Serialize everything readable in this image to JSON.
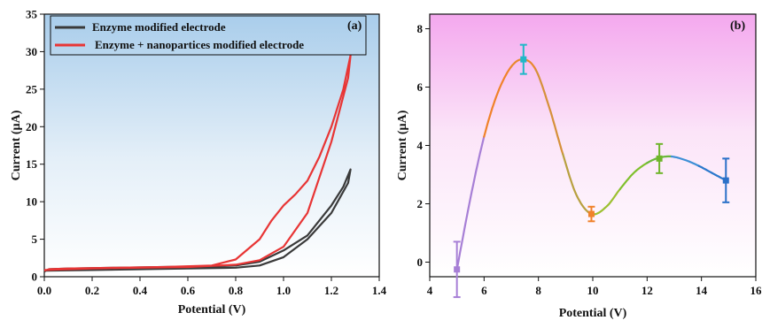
{
  "chart_data": [
    {
      "type": "line",
      "panel_label": "(a)",
      "xlabel": "Potential (V)",
      "ylabel": "Current (µA)",
      "xlim": [
        0.0,
        1.4
      ],
      "ylim": [
        0,
        35
      ],
      "xticks": [
        "0.0",
        "0.2",
        "0.4",
        "0.6",
        "0.8",
        "1.0",
        "1.2",
        "1.4"
      ],
      "yticks": [
        "0",
        "5",
        "10",
        "15",
        "20",
        "25",
        "30",
        "35"
      ],
      "legend_position": "top-left",
      "background": "gradient blue to white",
      "series": [
        {
          "name": "Enzyme modified electrode",
          "color": "#3a3a3a",
          "x": [
            0.0,
            0.02,
            0.1,
            0.3,
            0.5,
            0.7,
            0.8,
            0.9,
            1.0,
            1.1,
            1.2,
            1.25,
            1.28,
            1.27,
            1.2,
            1.1,
            1.0,
            0.9,
            0.8,
            0.6,
            0.4,
            0.2,
            0.0
          ],
          "y": [
            0.7,
            1.0,
            1.1,
            1.2,
            1.3,
            1.4,
            1.5,
            2.0,
            3.5,
            5.5,
            9.5,
            12.0,
            14.3,
            12.5,
            8.5,
            5.0,
            2.6,
            1.5,
            1.2,
            1.1,
            1.0,
            0.9,
            0.8
          ]
        },
        {
          "name": "Enzyme + nanopartices modified electrode",
          "color": "#e83535",
          "x": [
            0.0,
            0.02,
            0.1,
            0.3,
            0.5,
            0.7,
            0.8,
            0.9,
            0.95,
            1.0,
            1.05,
            1.1,
            1.15,
            1.2,
            1.25,
            1.28,
            1.27,
            1.2,
            1.1,
            1.0,
            0.9,
            0.8,
            0.6,
            0.4,
            0.2,
            0.0
          ],
          "y": [
            0.8,
            1.0,
            1.1,
            1.2,
            1.3,
            1.5,
            2.3,
            5.0,
            7.5,
            9.5,
            11.0,
            12.8,
            16.0,
            20.0,
            25.0,
            29.5,
            26.5,
            18.0,
            8.5,
            4.0,
            2.2,
            1.6,
            1.3,
            1.2,
            1.1,
            0.9
          ]
        }
      ]
    },
    {
      "type": "line",
      "panel_label": "(b)",
      "xlabel": "Potential (V)",
      "ylabel": "Current (µA)",
      "xlim": [
        4,
        16
      ],
      "ylim": [
        -0.5,
        8.5
      ],
      "xticks": [
        "4",
        "6",
        "8",
        "10",
        "12",
        "14",
        "16"
      ],
      "yticks": [
        "0",
        "2",
        "4",
        "6",
        "8"
      ],
      "background": "gradient pink to white",
      "points": [
        {
          "x": 5.0,
          "y": -0.25,
          "err": 0.95,
          "color": "#a77fd6"
        },
        {
          "x": 7.45,
          "y": 6.95,
          "err": 0.5,
          "color": "#20b8c8"
        },
        {
          "x": 9.95,
          "y": 1.65,
          "err": 0.25,
          "color": "#f0822a"
        },
        {
          "x": 12.45,
          "y": 3.55,
          "err": 0.5,
          "color": "#6fb52b"
        },
        {
          "x": 14.9,
          "y": 2.8,
          "err": 0.75,
          "color": "#2a70c8"
        }
      ],
      "curve": {
        "x": [
          5.0,
          5.5,
          6.0,
          6.5,
          7.0,
          7.45,
          7.9,
          8.4,
          8.9,
          9.4,
          9.95,
          10.5,
          11.0,
          11.5,
          12.0,
          12.45,
          12.9,
          13.4,
          13.9,
          14.4,
          14.9
        ],
        "y": [
          -0.25,
          2.2,
          4.3,
          5.8,
          6.7,
          6.95,
          6.6,
          5.3,
          3.7,
          2.3,
          1.65,
          1.9,
          2.5,
          3.05,
          3.4,
          3.58,
          3.62,
          3.5,
          3.3,
          3.05,
          2.8
        ],
        "colors": [
          "#a77fd6",
          "#f0822a",
          "#e8882d",
          "#d6903a",
          "#b8a040",
          "#9cc030",
          "#7fc02d",
          "#6ab83a",
          "#3d8fd6",
          "#2a78cc"
        ]
      }
    }
  ]
}
